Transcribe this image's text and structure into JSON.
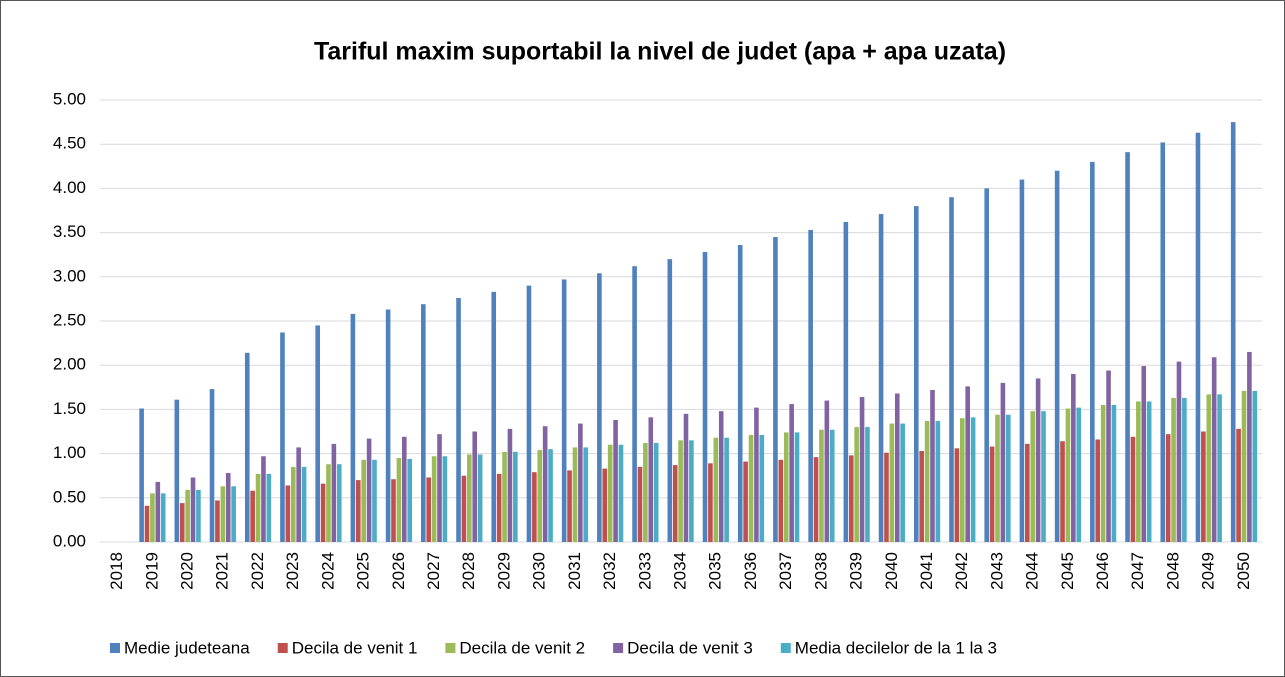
{
  "chart_data": {
    "type": "bar",
    "title": "Tariful maxim suportabil la nivel de judet (apa + apa uzata)",
    "categories": [
      "2018",
      "2019",
      "2020",
      "2021",
      "2022",
      "2023",
      "2024",
      "2025",
      "2026",
      "2027",
      "2028",
      "2029",
      "2030",
      "2031",
      "2032",
      "2033",
      "2034",
      "2035",
      "2036",
      "2037",
      "2038",
      "2039",
      "2040",
      "2041",
      "2042",
      "2043",
      "2044",
      "2045",
      "2046",
      "2047",
      "2048",
      "2049",
      "2050"
    ],
    "series": [
      {
        "name": "Medie judeteana",
        "color": "#4f81bd",
        "values": [
          null,
          1.51,
          1.61,
          1.73,
          2.14,
          2.37,
          2.45,
          2.58,
          2.63,
          2.69,
          2.76,
          2.83,
          2.9,
          2.97,
          3.04,
          3.12,
          3.2,
          3.28,
          3.36,
          3.45,
          3.53,
          3.62,
          3.71,
          3.8,
          3.9,
          4.0,
          4.1,
          4.2,
          4.3,
          4.41,
          4.52,
          4.63,
          4.75
        ]
      },
      {
        "name": "Decila de venit 1",
        "color": "#c0504d",
        "values": [
          null,
          0.41,
          0.44,
          0.47,
          0.58,
          0.64,
          0.66,
          0.7,
          0.71,
          0.73,
          0.75,
          0.77,
          0.79,
          0.81,
          0.83,
          0.85,
          0.87,
          0.89,
          0.91,
          0.93,
          0.96,
          0.98,
          1.01,
          1.03,
          1.06,
          1.08,
          1.11,
          1.14,
          1.16,
          1.19,
          1.22,
          1.25,
          1.28
        ]
      },
      {
        "name": "Decila de venit 2",
        "color": "#9bbb59",
        "values": [
          null,
          0.55,
          0.59,
          0.63,
          0.77,
          0.85,
          0.88,
          0.93,
          0.95,
          0.97,
          0.99,
          1.02,
          1.04,
          1.07,
          1.1,
          1.12,
          1.15,
          1.18,
          1.21,
          1.24,
          1.27,
          1.3,
          1.34,
          1.37,
          1.4,
          1.44,
          1.48,
          1.51,
          1.55,
          1.59,
          1.63,
          1.67,
          1.71
        ]
      },
      {
        "name": "Decila de venit 3",
        "color": "#8064a2",
        "values": [
          null,
          0.68,
          0.73,
          0.78,
          0.97,
          1.07,
          1.11,
          1.17,
          1.19,
          1.22,
          1.25,
          1.28,
          1.31,
          1.34,
          1.38,
          1.41,
          1.45,
          1.48,
          1.52,
          1.56,
          1.6,
          1.64,
          1.68,
          1.72,
          1.76,
          1.8,
          1.85,
          1.9,
          1.94,
          1.99,
          2.04,
          2.09,
          2.15
        ]
      },
      {
        "name": "Media decilelor de la 1 la 3",
        "color": "#4bacc6",
        "values": [
          null,
          0.55,
          0.59,
          0.63,
          0.77,
          0.85,
          0.88,
          0.93,
          0.94,
          0.97,
          0.99,
          1.02,
          1.05,
          1.07,
          1.1,
          1.12,
          1.15,
          1.18,
          1.21,
          1.24,
          1.27,
          1.3,
          1.34,
          1.37,
          1.41,
          1.44,
          1.48,
          1.52,
          1.55,
          1.59,
          1.63,
          1.67,
          1.71
        ]
      }
    ],
    "ylim": [
      0,
      5
    ],
    "yticks": [
      {
        "value": 0,
        "label": "0.00"
      },
      {
        "value": 0.5,
        "label": "0.50"
      },
      {
        "value": 1,
        "label": "1.00"
      },
      {
        "value": 1.5,
        "label": "1.50"
      },
      {
        "value": 2,
        "label": "2.00"
      },
      {
        "value": 2.5,
        "label": "2.50"
      },
      {
        "value": 3,
        "label": "3.00"
      },
      {
        "value": 3.5,
        "label": "3.50"
      },
      {
        "value": 4,
        "label": "4.00"
      },
      {
        "value": 4.5,
        "label": "4.50"
      },
      {
        "value": 5,
        "label": "5.00"
      }
    ],
    "grid": true,
    "legend": "bottom"
  }
}
